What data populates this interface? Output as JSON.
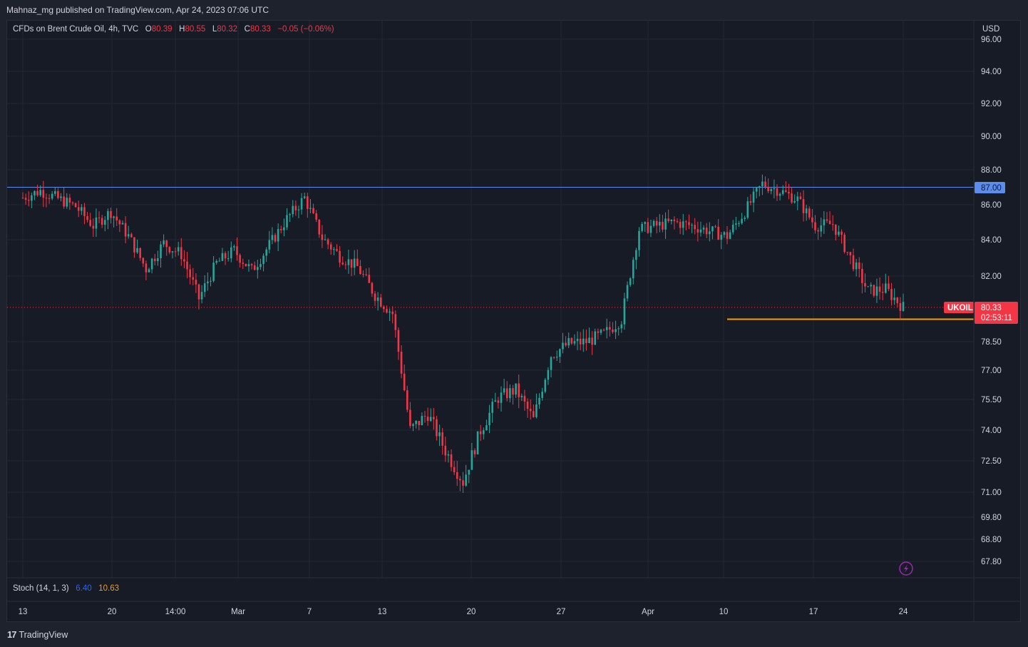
{
  "header": {
    "published": "Mahnaz_mg published on TradingView.com, Apr 24, 2023 07:06 UTC"
  },
  "legend": {
    "symbol": "CFDs on Brent Crude Oil, 4h, TVC",
    "o_label": "O",
    "o_value": "80.39",
    "h_label": "H",
    "h_value": "80.55",
    "l_label": "L",
    "l_value": "80.32",
    "c_label": "C",
    "c_value": "80.33",
    "change": "−0.05 (−0.06%)"
  },
  "stoch": {
    "label": "Stoch (14, 1, 3)",
    "k_value": "6.40",
    "d_value": "10.63"
  },
  "footer": {
    "brand": "TradingView",
    "logo": "17"
  },
  "colors": {
    "up": "#26a69a",
    "down": "#f23645",
    "resistance": "#5b8def",
    "support": "#ff9800",
    "background": "#171b26",
    "grid": "#232733",
    "alert_icon": "#9c27b0"
  },
  "icons": {
    "alert": "lightning-icon"
  },
  "chart_data": {
    "type": "candlestick",
    "title": "CFDs on Brent Crude Oil, 4h, TVC",
    "symbol": "UKOIL",
    "currency": "USD",
    "interval": "4h",
    "last_price": "80.33",
    "countdown": "02:53:11",
    "y_ticks": [
      "96.00",
      "94.00",
      "92.00",
      "90.00",
      "88.00",
      "86.00",
      "84.00",
      "82.00",
      "78.50",
      "77.00",
      "75.50",
      "74.00",
      "72.50",
      "71.00",
      "69.80",
      "68.80",
      "67.80"
    ],
    "x_ticks": [
      "13",
      "20",
      "14:00",
      "Mar",
      "7",
      "13",
      "20",
      "27",
      "Apr",
      "10",
      "17",
      "24"
    ],
    "horizontal_lines": [
      {
        "price": 87.0,
        "label": "87.00",
        "color": "#5b8def"
      },
      {
        "price": 79.7,
        "label": "",
        "color": "#ff9800",
        "start": "Apr 10"
      }
    ],
    "price_path": [
      {
        "x": "Feb 13",
        "price": 86.4
      },
      {
        "x": "Feb 14",
        "price": 86.8
      },
      {
        "x": "Feb 16",
        "price": 85.9
      },
      {
        "x": "Feb 17",
        "price": 84.8
      },
      {
        "x": "Feb 20",
        "price": 85.6
      },
      {
        "x": "Feb 21",
        "price": 84.2
      },
      {
        "x": "Feb 22",
        "price": 82.4
      },
      {
        "x": "Feb 23",
        "price": 83.8
      },
      {
        "x": "Feb 24",
        "price": 83.2
      },
      {
        "x": "Feb 27",
        "price": 80.8
      },
      {
        "x": "Feb 28",
        "price": 82.7
      },
      {
        "x": "Mar 1",
        "price": 83.4
      },
      {
        "x": "Mar 2",
        "price": 82.3
      },
      {
        "x": "Mar 3",
        "price": 83.7
      },
      {
        "x": "Mar 6",
        "price": 85.2
      },
      {
        "x": "Mar 7",
        "price": 86.4
      },
      {
        "x": "Mar 8",
        "price": 84.1
      },
      {
        "x": "Mar 9",
        "price": 83.1
      },
      {
        "x": "Mar 10",
        "price": 82.5
      },
      {
        "x": "Mar 13",
        "price": 81.0
      },
      {
        "x": "Mar 14",
        "price": 80.0
      },
      {
        "x": "Mar 15",
        "price": 74.0
      },
      {
        "x": "Mar 16",
        "price": 74.8
      },
      {
        "x": "Mar 17",
        "price": 73.0
      },
      {
        "x": "Mar 20",
        "price": 71.5
      },
      {
        "x": "Mar 21",
        "price": 74.0
      },
      {
        "x": "Mar 22",
        "price": 75.6
      },
      {
        "x": "Mar 23",
        "price": 76.0
      },
      {
        "x": "Mar 24",
        "price": 74.5
      },
      {
        "x": "Mar 27",
        "price": 77.8
      },
      {
        "x": "Mar 28",
        "price": 78.4
      },
      {
        "x": "Mar 29",
        "price": 78.5
      },
      {
        "x": "Mar 30",
        "price": 78.9
      },
      {
        "x": "Mar 31",
        "price": 79.7
      },
      {
        "x": "Apr 3",
        "price": 84.6
      },
      {
        "x": "Apr 5",
        "price": 85.0
      },
      {
        "x": "Apr 6",
        "price": 84.8
      },
      {
        "x": "Apr 10",
        "price": 84.2
      },
      {
        "x": "Apr 11",
        "price": 85.6
      },
      {
        "x": "Apr 12",
        "price": 87.2
      },
      {
        "x": "Apr 13",
        "price": 86.8
      },
      {
        "x": "Apr 14",
        "price": 86.3
      },
      {
        "x": "Apr 17",
        "price": 84.8
      },
      {
        "x": "Apr 18",
        "price": 84.9
      },
      {
        "x": "Apr 19",
        "price": 83.0
      },
      {
        "x": "Apr 20",
        "price": 81.2
      },
      {
        "x": "Apr 21",
        "price": 81.3
      },
      {
        "x": "Apr 24",
        "price": 80.33
      }
    ]
  }
}
